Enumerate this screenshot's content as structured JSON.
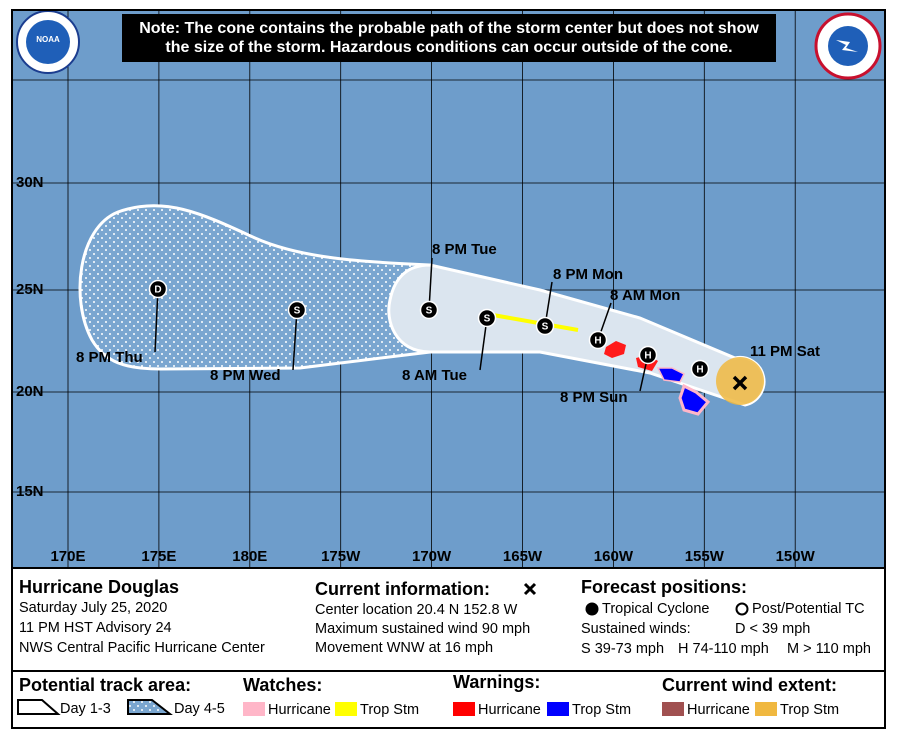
{
  "note": [
    "Note: The cone contains the probable path of the storm center but does not show",
    "the size of the storm. Hazardous conditions can occur outside of the cone."
  ],
  "logos": {
    "noaa": "NOAA"
  },
  "map": {
    "latitude_labels": [
      "30N",
      "25N",
      "20N",
      "15N"
    ],
    "longitude_labels": [
      "170E",
      "175E",
      "180E",
      "175W",
      "170W",
      "165W",
      "160W",
      "155W",
      "150W"
    ]
  },
  "current_position": {
    "label": "11 PM Sat"
  },
  "forecast_points": [
    {
      "symbol": "H"
    },
    {
      "symbol": "H",
      "label": "8 PM Sun"
    },
    {
      "symbol": "H",
      "label": "8 AM Mon"
    },
    {
      "symbol": "S",
      "label": "8 PM Mon"
    },
    {
      "symbol": "S",
      "label": "8 AM Tue"
    },
    {
      "symbol": "S",
      "label": "8 PM Tue"
    },
    {
      "symbol": "S",
      "label": "8 PM Wed"
    },
    {
      "symbol": "D",
      "label": "8 PM Thu"
    }
  ],
  "info": {
    "storm": {
      "title": "Hurricane Douglas",
      "lines": [
        "Saturday July 25, 2020",
        "11 PM HST Advisory 24",
        "NWS Central Pacific Hurricane Center"
      ]
    },
    "current": {
      "title": "Current information:",
      "lines": [
        "Center location 20.4 N 152.8 W",
        "Maximum sustained wind 90 mph",
        "Movement WNW at 16 mph"
      ]
    },
    "forecast": {
      "title": "Forecast positions:",
      "tropical_cyclone": "Tropical Cyclone",
      "post_potential": "Post/Potential TC",
      "winds_title": "Sustained winds:",
      "d": "D < 39 mph",
      "s": "S 39-73 mph",
      "h": "H 74-110 mph",
      "m": "M > 110 mph"
    }
  },
  "legend": {
    "track": {
      "title": "Potential track area:",
      "day13": "Day 1-3",
      "day45": "Day 4-5"
    },
    "watches": {
      "title": "Watches:",
      "hurricane": "Hurricane",
      "trop_stm": "Trop Stm"
    },
    "warnings": {
      "title": "Warnings:",
      "hurricane": "Hurricane",
      "trop_stm": "Trop Stm"
    },
    "wind": {
      "title": "Current wind extent:",
      "hurricane": "Hurricane",
      "trop_stm": "Trop Stm"
    }
  }
}
